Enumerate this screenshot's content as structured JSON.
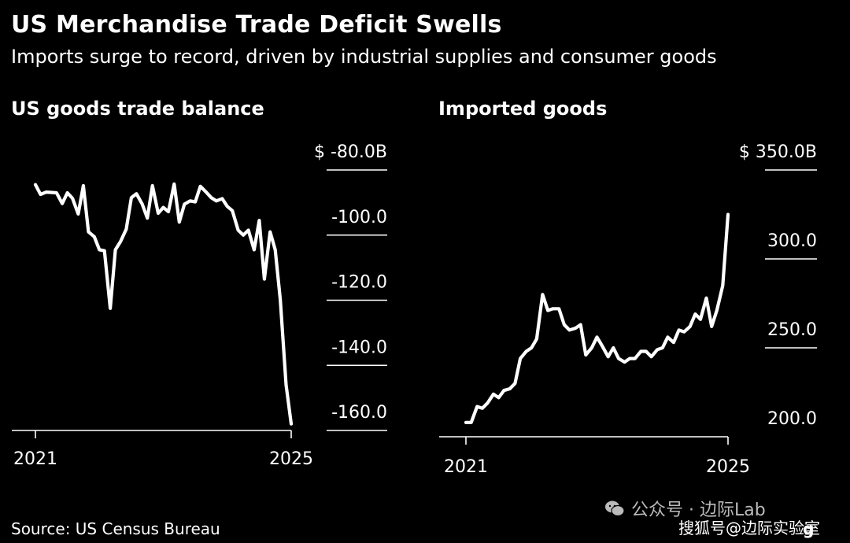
{
  "header": {
    "title": "US Merchandise Trade Deficit Swells",
    "subtitle": "Imports surge to record, driven by industrial supplies and consumer goods"
  },
  "footer": {
    "source": "Source: US Census Bureau",
    "watermark_line1": "公众号 · 边际Lab",
    "watermark_line2": "搜狐号@边际实验室",
    "logo_fragment": "g"
  },
  "chart_data": [
    {
      "type": "line",
      "title": "US goods trade balance",
      "x_ticks": [
        "2021",
        "2025"
      ],
      "x_range": [
        2021.0,
        2025.0
      ],
      "y_range": [
        -160,
        -80
      ],
      "y_ticks": [
        {
          "value": -80,
          "label": "$ -80.0B"
        },
        {
          "value": -100,
          "label": "-100.0"
        },
        {
          "value": -120,
          "label": "-120.0"
        },
        {
          "value": -140,
          "label": "-140.0"
        },
        {
          "value": -160,
          "label": "-160.0"
        }
      ],
      "color": "#ffffff",
      "grid": false,
      "series": [
        {
          "x": [
            2021.0,
            2021.08,
            2021.17,
            2021.33,
            2021.42,
            2021.5,
            2021.58,
            2021.67,
            2021.75,
            2021.83,
            2021.92,
            2022.0,
            2022.08,
            2022.17,
            2022.25,
            2022.33,
            2022.42,
            2022.5,
            2022.58,
            2022.67,
            2022.75,
            2022.83,
            2022.92,
            2023.0,
            2023.08,
            2023.17,
            2023.25,
            2023.33,
            2023.42,
            2023.5,
            2023.58,
            2023.67,
            2023.75,
            2023.83,
            2023.92,
            2024.0,
            2024.08,
            2024.17,
            2024.25,
            2024.33,
            2024.42,
            2024.5,
            2024.58,
            2024.67,
            2024.75,
            2024.83,
            2024.92,
            2025.0
          ],
          "y": [
            -84.5,
            -87.5,
            -86.8,
            -87.0,
            -90.3,
            -87.0,
            -88.7,
            -93.5,
            -84.8,
            -99.0,
            -100.5,
            -104.5,
            -104.8,
            -122.5,
            -104.5,
            -102.0,
            -98.2,
            -88.5,
            -87.3,
            -90.5,
            -94.8,
            -84.8,
            -93.3,
            -91.5,
            -92.8,
            -84.3,
            -96.0,
            -90.5,
            -89.5,
            -89.8,
            -85.0,
            -86.8,
            -88.5,
            -89.5,
            -88.8,
            -91.2,
            -92.5,
            -98.5,
            -100.0,
            -98.5,
            -104.5,
            -95.5,
            -113.5,
            -99.0,
            -104.5,
            -120.0,
            -146.0,
            -158.0
          ]
        }
      ]
    },
    {
      "type": "line",
      "title": "Imported goods",
      "x_ticks": [
        "2021",
        "2025"
      ],
      "x_range": [
        2021.0,
        2025.0
      ],
      "y_range": [
        200,
        350
      ],
      "y_ticks": [
        {
          "value": 350,
          "label": "$ 350.0B"
        },
        {
          "value": 300,
          "label": "300.0"
        },
        {
          "value": 250,
          "label": "250.0"
        },
        {
          "value": 200,
          "label": "200.0"
        }
      ],
      "color": "#ffffff",
      "grid": false,
      "series": [
        {
          "x": [
            2021.0,
            2021.08,
            2021.17,
            2021.25,
            2021.33,
            2021.42,
            2021.5,
            2021.58,
            2021.67,
            2021.75,
            2021.83,
            2021.92,
            2022.0,
            2022.08,
            2022.17,
            2022.25,
            2022.33,
            2022.42,
            2022.5,
            2022.58,
            2022.67,
            2022.75,
            2022.83,
            2022.92,
            2023.0,
            2023.08,
            2023.17,
            2023.25,
            2023.33,
            2023.42,
            2023.5,
            2023.58,
            2023.67,
            2023.75,
            2023.83,
            2023.92,
            2024.0,
            2024.08,
            2024.17,
            2024.25,
            2024.33,
            2024.42,
            2024.5,
            2024.58,
            2024.67,
            2024.75,
            2024.83,
            2024.92,
            2025.0
          ],
          "y": [
            208,
            208,
            217,
            216,
            219,
            224,
            222,
            226,
            227,
            230,
            244,
            248,
            250,
            255,
            280,
            271,
            272,
            272,
            263,
            260,
            261,
            263,
            246,
            250,
            256,
            251,
            245,
            250,
            244,
            242,
            244,
            244,
            248,
            248,
            245,
            249,
            250,
            256,
            253,
            260,
            259,
            262,
            269,
            266,
            278,
            262,
            271,
            285,
            325
          ]
        }
      ]
    }
  ]
}
